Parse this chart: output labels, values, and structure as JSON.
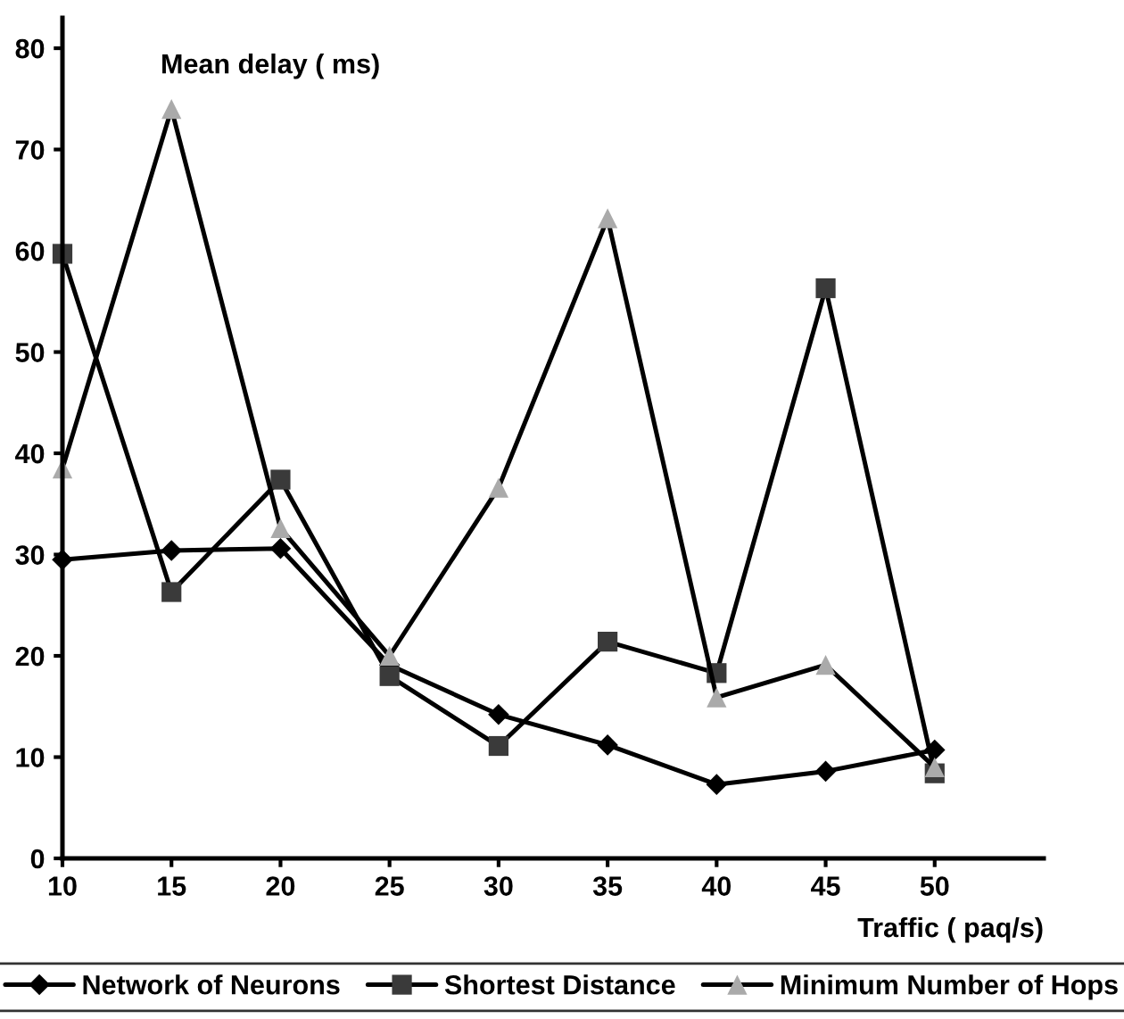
{
  "chart_data": {
    "type": "line",
    "xlabel": "Traffic ( paq/s)",
    "ylabel": "Mean delay ( ms)",
    "x": [
      10,
      15,
      20,
      25,
      30,
      35,
      40,
      45,
      50
    ],
    "series": [
      {
        "name": "Network of Neurons",
        "color": "#000000",
        "marker": "diamond",
        "values": [
          29.5,
          30.4,
          30.6,
          19.1,
          14.2,
          11.2,
          7.3,
          8.6,
          10.7
        ]
      },
      {
        "name": "Shortest Distance",
        "color": "#3a3a3a",
        "marker": "square",
        "values": [
          59.7,
          26.3,
          37.4,
          18.0,
          11.1,
          21.4,
          18.3,
          56.3,
          8.4
        ]
      },
      {
        "name": "Minimum Number of Hops",
        "color": "#aaaaaa",
        "marker": "triangle",
        "values": [
          38.5,
          74.0,
          32.6,
          20.0,
          36.6,
          63.2,
          15.9,
          19.1,
          9.0
        ]
      }
    ],
    "xlim": [
      10,
      55
    ],
    "xticks": [
      10,
      15,
      20,
      25,
      30,
      35,
      40,
      45,
      50
    ],
    "ylim": [
      0,
      83
    ],
    "yticks": [
      0,
      10,
      20,
      30,
      40,
      50,
      60,
      70,
      80
    ],
    "grid": false,
    "legend": "bottom",
    "line_style": "solid"
  }
}
